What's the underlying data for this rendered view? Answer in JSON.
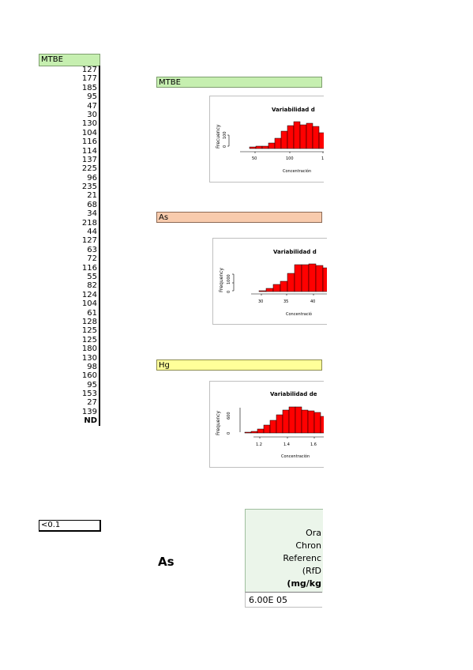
{
  "column": {
    "header": "MTBE",
    "values": [
      "127",
      "177",
      "185",
      "95",
      "47",
      "30",
      "130",
      "104",
      "116",
      "114",
      "137",
      "225",
      "96",
      "235",
      "21",
      "68",
      "34",
      "218",
      "44",
      "127",
      "63",
      "72",
      "116",
      "55",
      "82",
      "124",
      "104",
      "61",
      "128",
      "125",
      "125",
      "180",
      "130",
      "98",
      "160",
      "95",
      "153",
      "27",
      "139"
    ],
    "nd_label": "ND",
    "lt_label": "<0.1"
  },
  "sections": {
    "mtbe": {
      "label": "MTBE",
      "color": "#c6efb0",
      "chart": {
        "title": "Variabilidad d",
        "ylabel": "Frecuency",
        "y_ticks": [
          "0",
          "100"
        ],
        "x_ticks": [
          "50",
          "100",
          "1"
        ],
        "xlabel": "Concentración"
      }
    },
    "as": {
      "label": "As",
      "color": "#f8cbad",
      "chart": {
        "title": "Variabilidad d",
        "ylabel": "Frequency",
        "y_ticks": [
          "0",
          "1000"
        ],
        "x_ticks": [
          "30",
          "35",
          "40"
        ],
        "xlabel": "Concentració"
      }
    },
    "hg": {
      "label": "Hg",
      "color": "#ffff99",
      "chart": {
        "title": "Variabilidad de",
        "ylabel": "Frequency",
        "y_ticks": [
          "0",
          "600"
        ],
        "x_ticks": [
          "1.2",
          "1.4",
          "1.6"
        ],
        "xlabel": "Concentración"
      }
    }
  },
  "rfd": {
    "element_label": "As",
    "lines": [
      "Ora",
      "Chron",
      "Referenc",
      "(RfD",
      "(mg/kg"
    ],
    "value": "6.00E 05"
  }
}
